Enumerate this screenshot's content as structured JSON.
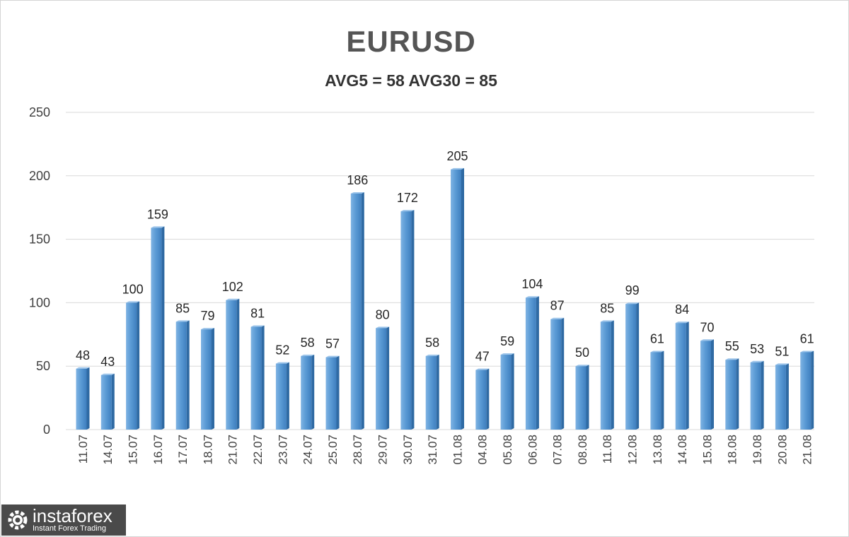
{
  "chart_data": {
    "type": "bar",
    "title": "EURUSD",
    "subtitle": "AVG5 = 58 AVG30 = 85",
    "categories": [
      "11.07",
      "14.07",
      "15.07",
      "16.07",
      "17.07",
      "18.07",
      "21.07",
      "22.07",
      "23.07",
      "24.07",
      "25.07",
      "28.07",
      "29.07",
      "30.07",
      "31.07",
      "01.08",
      "04.08",
      "05.08",
      "06.08",
      "07.08",
      "08.08",
      "11.08",
      "12.08",
      "13.08",
      "14.08",
      "15.08",
      "18.08",
      "19.08",
      "20.08",
      "21.08"
    ],
    "values": [
      48,
      43,
      100,
      159,
      85,
      79,
      102,
      81,
      52,
      58,
      57,
      186,
      80,
      172,
      58,
      205,
      47,
      59,
      104,
      87,
      50,
      85,
      99,
      61,
      84,
      70,
      55,
      53,
      51,
      61
    ],
    "ylim": [
      0,
      250
    ],
    "yticks": [
      0,
      50,
      100,
      150,
      200,
      250
    ],
    "grid": true,
    "data_labels": true,
    "bar_color": "#5b9bd5"
  },
  "logo": {
    "name": "instaforex",
    "tagline": "Instant Forex Trading"
  }
}
